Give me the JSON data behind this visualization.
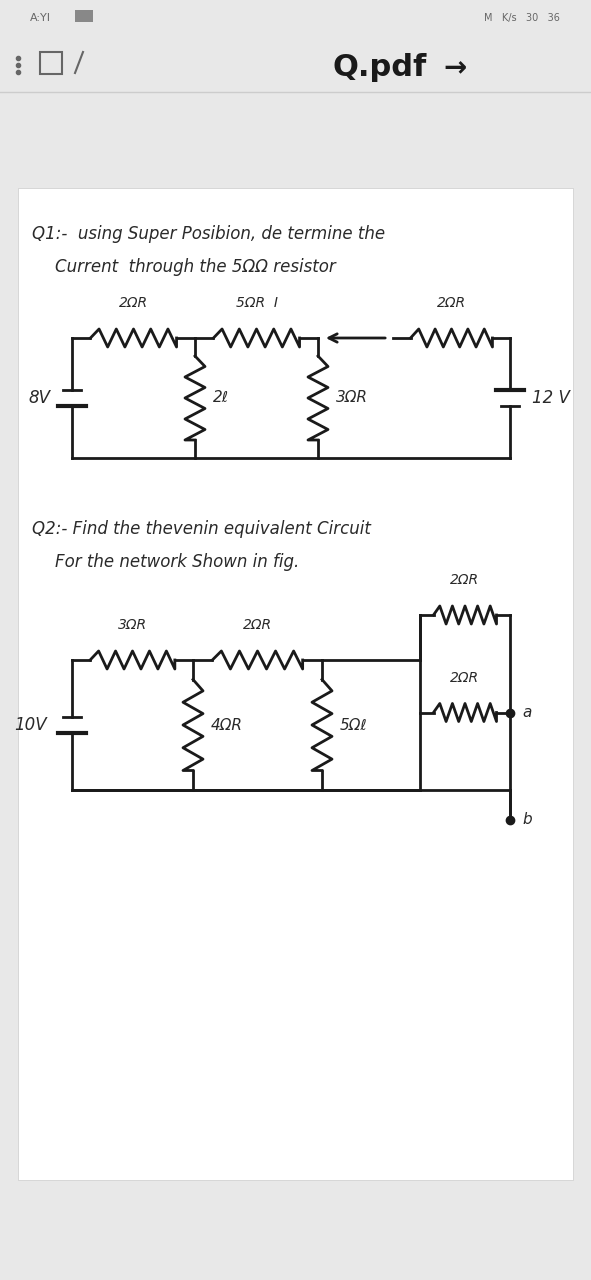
{
  "bg_color_top": "#e8e8e8",
  "bg_color_paper": "#f5f5f5",
  "paper_color": "#ffffff",
  "text_color": "#2a2a2a",
  "circuit_color": "#1a1a1a",
  "gray_ui": "#666666",
  "status_left": "A:YI",
  "status_right": "M  K/s  30  36",
  "toolbar_title": "Q.pdf",
  "q1_line1": "Q1:-  using Super Posibion, de termine the",
  "q1_line2": "         Current  through the 5ΩR resistor",
  "q2_line1": "Q2:- Find the thevenin equivalent Circuit",
  "q2_line2": "        For the network Shown in fig."
}
